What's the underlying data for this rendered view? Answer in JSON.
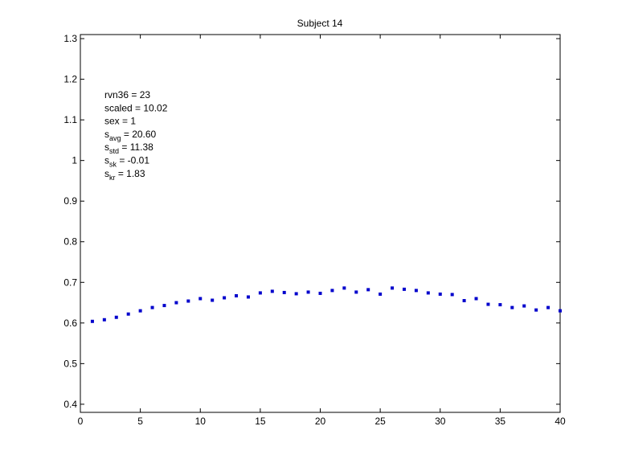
{
  "chart_data": {
    "type": "scatter",
    "title": "Subject 14",
    "xlabel": "",
    "ylabel": "",
    "xlim": [
      0,
      40
    ],
    "ylim": [
      0.38,
      1.31
    ],
    "xticks": [
      "0",
      "5",
      "10",
      "15",
      "20",
      "25",
      "30",
      "35",
      "40"
    ],
    "yticks": [
      "0.4",
      "0.5",
      "0.6",
      "0.7",
      "0.8",
      "0.9",
      "1",
      "1.1",
      "1.2",
      "1.3"
    ],
    "grid": false,
    "marker_color": "#0000cc",
    "x": [
      1,
      2,
      3,
      4,
      5,
      6,
      7,
      8,
      9,
      10,
      11,
      12,
      13,
      14,
      15,
      16,
      17,
      18,
      19,
      20,
      21,
      22,
      23,
      24,
      25,
      26,
      27,
      28,
      29,
      30,
      31,
      32,
      33,
      34,
      35,
      36,
      37,
      38,
      39,
      40
    ],
    "values": [
      0.604,
      0.608,
      0.614,
      0.622,
      0.63,
      0.638,
      0.643,
      0.65,
      0.654,
      0.66,
      0.656,
      0.662,
      0.667,
      0.664,
      0.674,
      0.678,
      0.675,
      0.672,
      0.676,
      0.673,
      0.68,
      0.686,
      0.676,
      0.682,
      0.671,
      0.686,
      0.683,
      0.68,
      0.674,
      0.671,
      0.67,
      0.655,
      0.66,
      0.646,
      0.645,
      0.638,
      0.642,
      0.632,
      0.638,
      0.63
    ],
    "annotations": [
      {
        "main": "rvn36 = 23",
        "sub": "",
        "rest": ""
      },
      {
        "main": "scaled = 10.02",
        "sub": "",
        "rest": ""
      },
      {
        "main": "sex   = 1",
        "sub": "",
        "rest": ""
      },
      {
        "main": "s",
        "sub": "avg",
        "rest": " = 20.60"
      },
      {
        "main": "s",
        "sub": "std",
        "rest": " = 11.38"
      },
      {
        "main": "s",
        "sub": "sk",
        "rest": " = -0.01"
      },
      {
        "main": "s",
        "sub": "kr",
        "rest": " = 1.83"
      }
    ]
  }
}
